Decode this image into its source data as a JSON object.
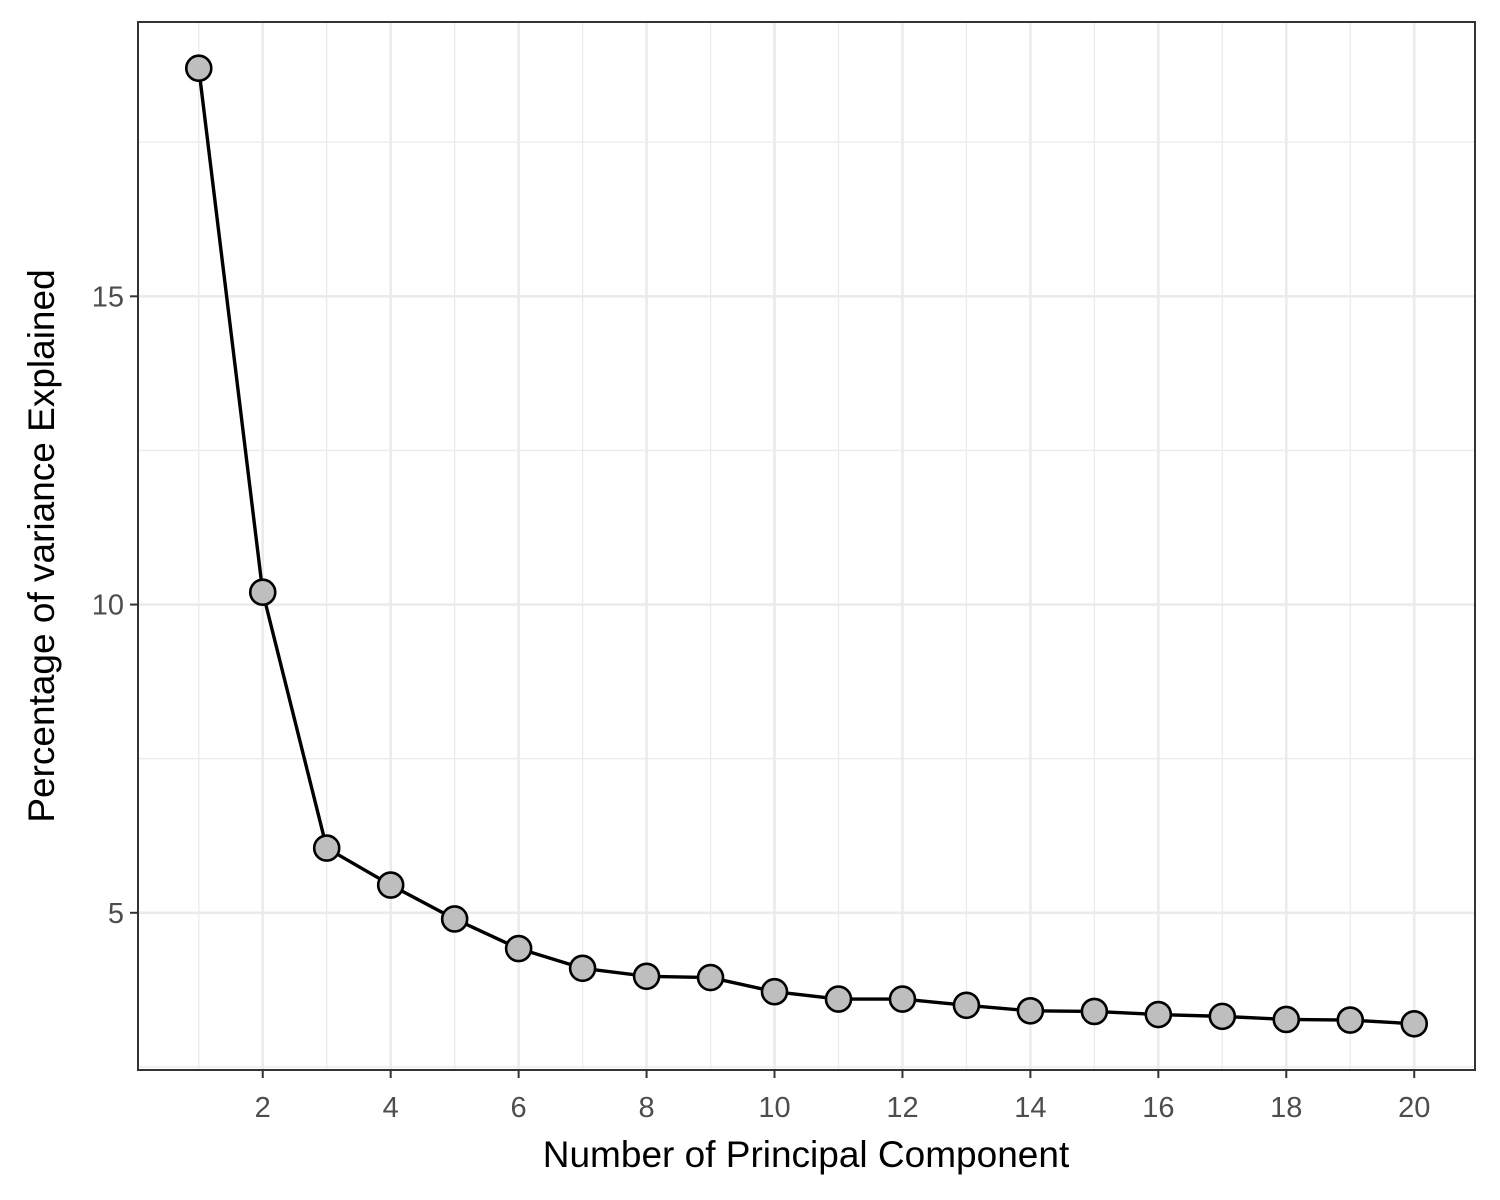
{
  "chart_data": {
    "type": "line",
    "title": "",
    "xlabel": "Number of Principal Component",
    "ylabel": "Percentage of variance Explained",
    "x": [
      1,
      2,
      3,
      4,
      5,
      6,
      7,
      8,
      9,
      10,
      11,
      12,
      13,
      14,
      15,
      16,
      17,
      18,
      19,
      20
    ],
    "series": [
      {
        "values": [
          18.7,
          10.2,
          6.05,
          5.45,
          4.9,
          4.42,
          4.1,
          3.97,
          3.95,
          3.72,
          3.6,
          3.6,
          3.5,
          3.41,
          3.4,
          3.35,
          3.32,
          3.27,
          3.26,
          3.2
        ]
      }
    ],
    "xticks": [
      2,
      4,
      6,
      8,
      10,
      12,
      14,
      16,
      18,
      20
    ],
    "yticks": [
      5,
      10,
      15
    ],
    "xlim": [
      0.05,
      20.95
    ],
    "ylim": [
      2.45,
      19.45
    ],
    "grid": true,
    "legend": "none",
    "colors": {
      "line": "#000000",
      "point_fill": "#bebebe",
      "point_stroke": "#000000",
      "grid": "#ebebeb",
      "panel_border": "#333333"
    }
  }
}
